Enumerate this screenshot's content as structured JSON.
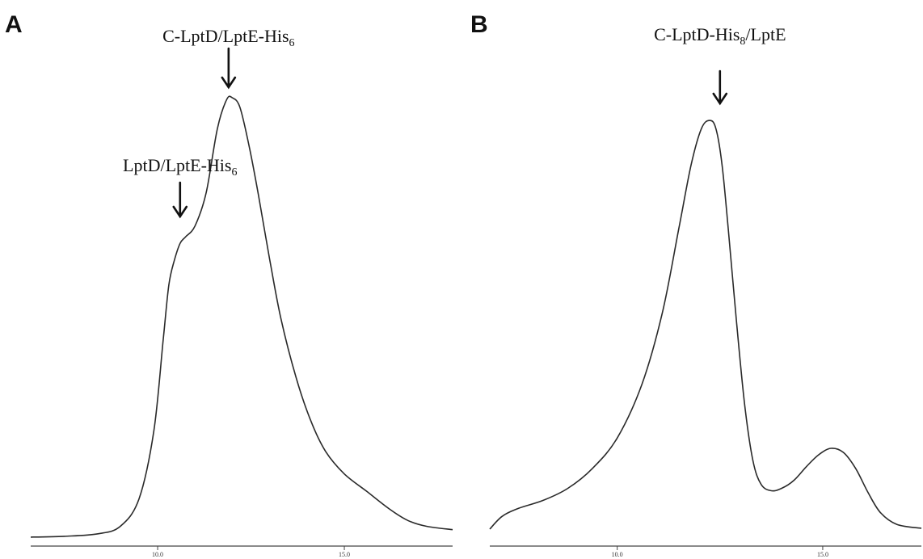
{
  "chart_data": [
    {
      "type": "line",
      "panel": "A",
      "title": "",
      "xlabel": "",
      "ylabel": "",
      "xlim": [
        6.6,
        17.9
      ],
      "x_ticks": [
        10.0,
        15.0
      ],
      "x_tick_labels": [
        "10.0",
        "15.0"
      ],
      "grid": false,
      "series": [
        {
          "x": [
            6.6,
            7.5,
            8.4,
            9.0,
            9.5,
            9.9,
            10.15,
            10.3,
            10.45,
            10.6,
            10.75,
            11.0,
            11.3,
            11.6,
            11.85,
            12.0,
            12.2,
            12.45,
            12.7,
            13.0,
            13.3,
            13.7,
            14.1,
            14.5,
            15.0,
            15.6,
            16.2,
            16.7,
            17.2,
            17.9
          ],
          "y": [
            2,
            3,
            6,
            15,
            48,
            130,
            240,
            305,
            335,
            355,
            363,
            376,
            416,
            493,
            528,
            530,
            519,
            472,
            413,
            336,
            265,
            195,
            142,
            105,
            78,
            57,
            36,
            22,
            15,
            11
          ]
        }
      ],
      "annotations": [
        {
          "text": "C-LptD/LptE-His",
          "subscript": "6",
          "x": 11.9
        },
        {
          "text": "LptD/LptE-His",
          "subscript": "6",
          "x": 10.6
        }
      ]
    },
    {
      "type": "line",
      "panel": "B",
      "title": "",
      "xlabel": "",
      "ylabel": "",
      "xlim": [
        6.9,
        17.4
      ],
      "x_ticks": [
        10.0,
        15.0
      ],
      "x_tick_labels": [
        "10.0",
        "15.0"
      ],
      "grid": false,
      "series": [
        {
          "x": [
            6.9,
            7.2,
            7.6,
            8.2,
            8.8,
            9.4,
            10.0,
            10.6,
            11.1,
            11.5,
            11.8,
            12.05,
            12.25,
            12.4,
            12.55,
            12.7,
            12.9,
            13.1,
            13.3,
            13.5,
            13.75,
            14.0,
            14.3,
            14.6,
            14.9,
            15.2,
            15.5,
            15.8,
            16.1,
            16.4,
            16.8,
            17.4
          ],
          "y": [
            4,
            20,
            30,
            40,
            55,
            80,
            118,
            185,
            275,
            380,
            460,
            505,
            515,
            505,
            460,
            380,
            265,
            160,
            90,
            60,
            52,
            55,
            65,
            82,
            97,
            105,
            100,
            80,
            50,
            25,
            10,
            5
          ]
        }
      ],
      "annotations": [
        {
          "text": "C-LptD-His",
          "subscript": "8",
          "suffix": "/LptE",
          "x": 12.5
        }
      ]
    }
  ],
  "panels": {
    "a": {
      "letter": "A"
    },
    "b": {
      "letter": "B"
    }
  }
}
